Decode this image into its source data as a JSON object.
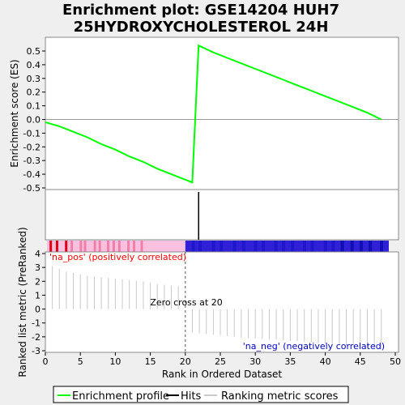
{
  "chart_data": {
    "type": "line",
    "title": "Enrichment plot: GSE14204 HUH7\n25HYDROXYCHOLESTEROL 24H",
    "es_panel": {
      "ylabel": "Enrichment score (ES)",
      "ylim": [
        -0.5,
        0.6
      ],
      "yticks": [
        "0.5",
        "0.4",
        "0.3",
        "0.2",
        "0.1",
        "0.0",
        "-0.1",
        "-0.2",
        "-0.3",
        "-0.4",
        "-0.5"
      ],
      "ytick_values": [
        0.5,
        0.4,
        0.3,
        0.2,
        0.1,
        0.0,
        -0.1,
        -0.2,
        -0.3,
        -0.4,
        -0.5
      ],
      "series": [
        {
          "name": "Enrichment profile",
          "color": "#00ff00",
          "x": [
            0,
            2,
            4,
            6,
            8,
            10,
            12,
            14,
            16,
            18,
            19.5,
            21,
            21.9,
            24,
            26,
            28,
            30,
            32,
            34,
            36,
            38,
            40,
            42,
            44,
            46,
            48
          ],
          "y": [
            -0.02,
            -0.05,
            -0.09,
            -0.13,
            -0.18,
            -0.22,
            -0.27,
            -0.31,
            -0.36,
            -0.4,
            -0.43,
            -0.46,
            0.54,
            0.49,
            0.45,
            0.41,
            0.37,
            0.33,
            0.29,
            0.25,
            0.21,
            0.17,
            0.13,
            0.09,
            0.05,
            0.0
          ]
        }
      ]
    },
    "hits": {
      "name": "Hits",
      "x": [
        21.9
      ]
    },
    "ranked_panel": {
      "ylabel": "Ranked list metric (PreRanked)",
      "xlabel": "Rank in Ordered Dataset",
      "xlim": [
        0,
        50
      ],
      "ylim": [
        -3,
        4
      ],
      "xticks": [
        "0",
        "5",
        "10",
        "15",
        "20",
        "25",
        "30",
        "35",
        "40",
        "45",
        "50"
      ],
      "xtick_values": [
        0,
        5,
        10,
        15,
        20,
        25,
        30,
        35,
        40,
        45,
        50
      ],
      "yticks": [
        "4",
        "3",
        "2",
        "1",
        "0",
        "-1",
        "-2",
        "-3"
      ],
      "ytick_values": [
        4,
        3,
        2,
        1,
        0,
        -1,
        -2,
        -3
      ],
      "series": [
        {
          "name": "Ranking metric scores",
          "color": "#c8c8c8",
          "x": [
            1,
            2,
            3,
            4,
            5,
            6,
            7,
            8,
            9,
            10,
            11,
            12,
            13,
            14,
            15,
            16,
            17,
            18,
            19,
            21,
            22,
            23,
            24,
            25,
            26,
            27,
            28,
            29,
            30,
            31,
            32,
            33,
            34,
            35,
            36,
            37,
            38,
            39,
            40,
            41,
            42,
            43,
            44,
            45,
            46,
            47,
            48
          ],
          "y": [
            3.1,
            2.9,
            2.7,
            2.6,
            2.5,
            2.4,
            2.35,
            2.3,
            2.25,
            2.2,
            2.15,
            2.1,
            2.05,
            2.0,
            1.9,
            1.8,
            1.75,
            1.7,
            1.65,
            -1.7,
            -1.75,
            -1.8,
            -1.85,
            -1.9,
            -1.95,
            -2.0,
            -2.05,
            -2.1,
            -2.1,
            -2.15,
            -2.2,
            -2.2,
            -2.25,
            -2.3,
            -2.3,
            -2.35,
            -2.4,
            -2.45,
            -2.5,
            -2.55,
            -2.6,
            -2.65,
            -2.7,
            -2.75,
            -2.8,
            -2.85,
            -2.9
          ]
        }
      ],
      "zero_cross_label": "Zero cross at 20",
      "zero_cross_x": 20,
      "pos_label": "'na_pos' (positively correlated)",
      "neg_label": "'na_neg' (negatively correlated)",
      "pos_color": "#ff0000",
      "neg_color": "#0000c0"
    },
    "legend": {
      "placement": "bottom",
      "entries": [
        {
          "label": "Enrichment profile",
          "color": "#00ff00"
        },
        {
          "label": "Hits",
          "color": "#000000"
        },
        {
          "label": "Ranking metric scores",
          "color": "#c8c8c8"
        }
      ]
    }
  }
}
